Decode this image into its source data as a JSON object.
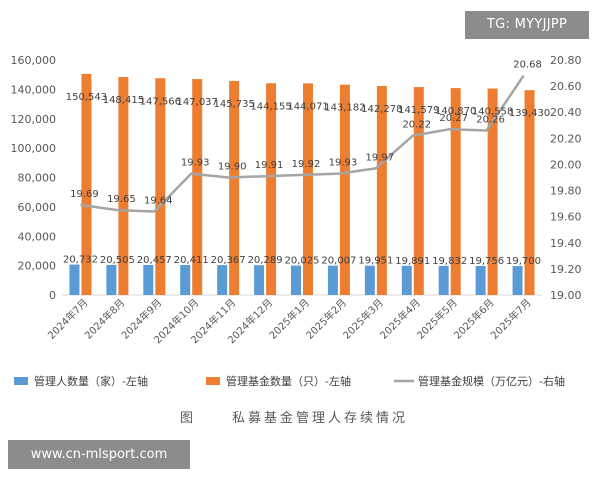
{
  "watermarks": {
    "top_right": "TG: MYYJJPP",
    "bottom_left": "www.cn-mlsport.com"
  },
  "caption": {
    "label": "图",
    "title": "私募基金管理人存续情况"
  },
  "colors": {
    "managers": "#5b9bd5",
    "funds": "#ed7d31",
    "scale": "#a5a5a5"
  },
  "chart_data": {
    "type": "bar",
    "categories": [
      "2024年7月",
      "2024年8月",
      "2024年9月",
      "2024年10月",
      "2024年11月",
      "2024年12月",
      "2025年1月",
      "2025年2月",
      "2025年3月",
      "2025年4月",
      "2025年5月",
      "2025年6月",
      "2025年7月"
    ],
    "y_left": {
      "min": 0,
      "max": 160000,
      "step": 20000,
      "ticks": [
        "0",
        "20,000",
        "40,000",
        "60,000",
        "80,000",
        "100,000",
        "120,000",
        "140,000",
        "160,000"
      ]
    },
    "y_right": {
      "min": 19.0,
      "max": 20.8,
      "step": 0.2,
      "ticks": [
        "19.00",
        "19.20",
        "19.40",
        "19.60",
        "19.80",
        "20.00",
        "20.20",
        "20.40",
        "20.60",
        "20.80"
      ]
    },
    "series": [
      {
        "name": "管理人数量（家）-左轴",
        "type": "bar",
        "axis": "left",
        "values": [
          20732,
          20505,
          20457,
          20411,
          20367,
          20289,
          20025,
          20007,
          19951,
          19891,
          19832,
          19756,
          19700
        ],
        "labels": [
          "20,732",
          "20,505",
          "20,457",
          "20,411",
          "20,367",
          "20,289",
          "20,025",
          "20,007",
          "19,951",
          "19,891",
          "19,832",
          "19,756",
          "19,700"
        ]
      },
      {
        "name": "管理基金数量（只）-左轴",
        "type": "bar",
        "axis": "left",
        "values": [
          150543,
          148415,
          147566,
          147037,
          145735,
          144155,
          144071,
          143182,
          142278,
          141579,
          140870,
          140558,
          139430
        ],
        "labels": [
          "150,543",
          "148,415",
          "147,566",
          "147,037",
          "145,735",
          "144,155",
          "144,071",
          "143,182",
          "142,278",
          "141,579",
          "140,870",
          "140,558",
          "139,430"
        ]
      },
      {
        "name": "管理基金规模（万亿元）-右轴",
        "type": "line",
        "axis": "right",
        "values": [
          19.69,
          19.65,
          19.64,
          19.93,
          19.9,
          19.91,
          19.92,
          19.93,
          19.97,
          20.22,
          20.27,
          20.26,
          20.68
        ],
        "labels": [
          "19.69",
          "19.65",
          "19.64",
          "19.93",
          "19.90",
          "19.91",
          "19.92",
          "19.93",
          "19.97",
          "20.22",
          "20.27",
          "20.26",
          "20.68"
        ]
      }
    ],
    "legend_position": "bottom",
    "grid": false
  }
}
